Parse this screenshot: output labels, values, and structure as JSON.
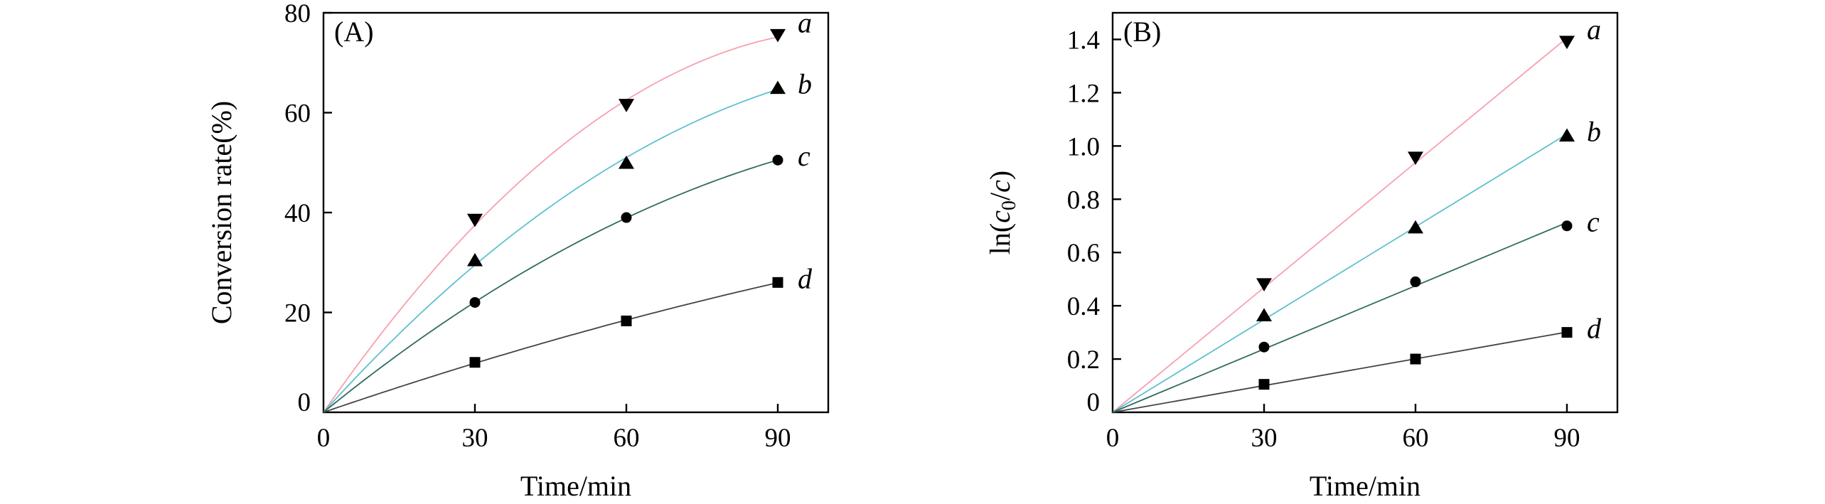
{
  "chart_data": [
    {
      "type": "scatter",
      "panel_label": "(A)",
      "xlabel": "Time/min",
      "ylabel": "Conversion rate(%)",
      "xlim": [
        0,
        100
      ],
      "ylim": [
        0,
        80
      ],
      "xticks": [
        0,
        30,
        60,
        90
      ],
      "yticks": [
        0,
        20,
        40,
        60,
        80
      ],
      "x": [
        0,
        30,
        60,
        90
      ],
      "series": [
        {
          "name": "a",
          "marker": "triangle-down",
          "color": "#f7a0b0",
          "values": [
            0,
            38.5,
            61.5,
            75.5
          ]
        },
        {
          "name": "b",
          "marker": "triangle-up",
          "color": "#5fc0cf",
          "values": [
            0,
            30.5,
            50,
            65
          ]
        },
        {
          "name": "c",
          "marker": "circle",
          "color": "#2f6b62",
          "values": [
            0,
            22,
            39,
            50.5
          ]
        },
        {
          "name": "d",
          "marker": "square",
          "color": "#444444",
          "values": [
            0,
            10,
            18.3,
            26
          ]
        }
      ]
    },
    {
      "type": "scatter",
      "panel_label": "(B)",
      "xlabel": "Time/min",
      "ylabel": {
        "prefix": "ln(",
        "c0": "c",
        "sub": "0",
        "slash": "/",
        "c": "c",
        "suffix": ")"
      },
      "xlim": [
        0,
        100
      ],
      "ylim": [
        0,
        1.5
      ],
      "xticks": [
        0,
        30,
        60,
        90
      ],
      "yticks": [
        0,
        0.2,
        0.4,
        0.6,
        0.8,
        1.0,
        1.2,
        1.4
      ],
      "ytick_labels": [
        "0",
        "0.2",
        "0.4",
        "0.6",
        "0.8",
        "1.0",
        "1.2",
        "1.4"
      ],
      "x": [
        0,
        30,
        60,
        90
      ],
      "series": [
        {
          "name": "a",
          "marker": "triangle-down",
          "color": "#f7a0b0",
          "values": [
            0,
            0.48,
            0.955,
            1.39
          ]
        },
        {
          "name": "b",
          "marker": "triangle-up",
          "color": "#5fc0cf",
          "values": [
            0,
            0.365,
            0.695,
            1.04
          ]
        },
        {
          "name": "c",
          "marker": "circle",
          "color": "#2f6b62",
          "values": [
            0,
            0.245,
            0.49,
            0.7
          ]
        },
        {
          "name": "d",
          "marker": "square",
          "color": "#444444",
          "values": [
            0,
            0.105,
            0.2,
            0.3
          ]
        }
      ]
    }
  ]
}
